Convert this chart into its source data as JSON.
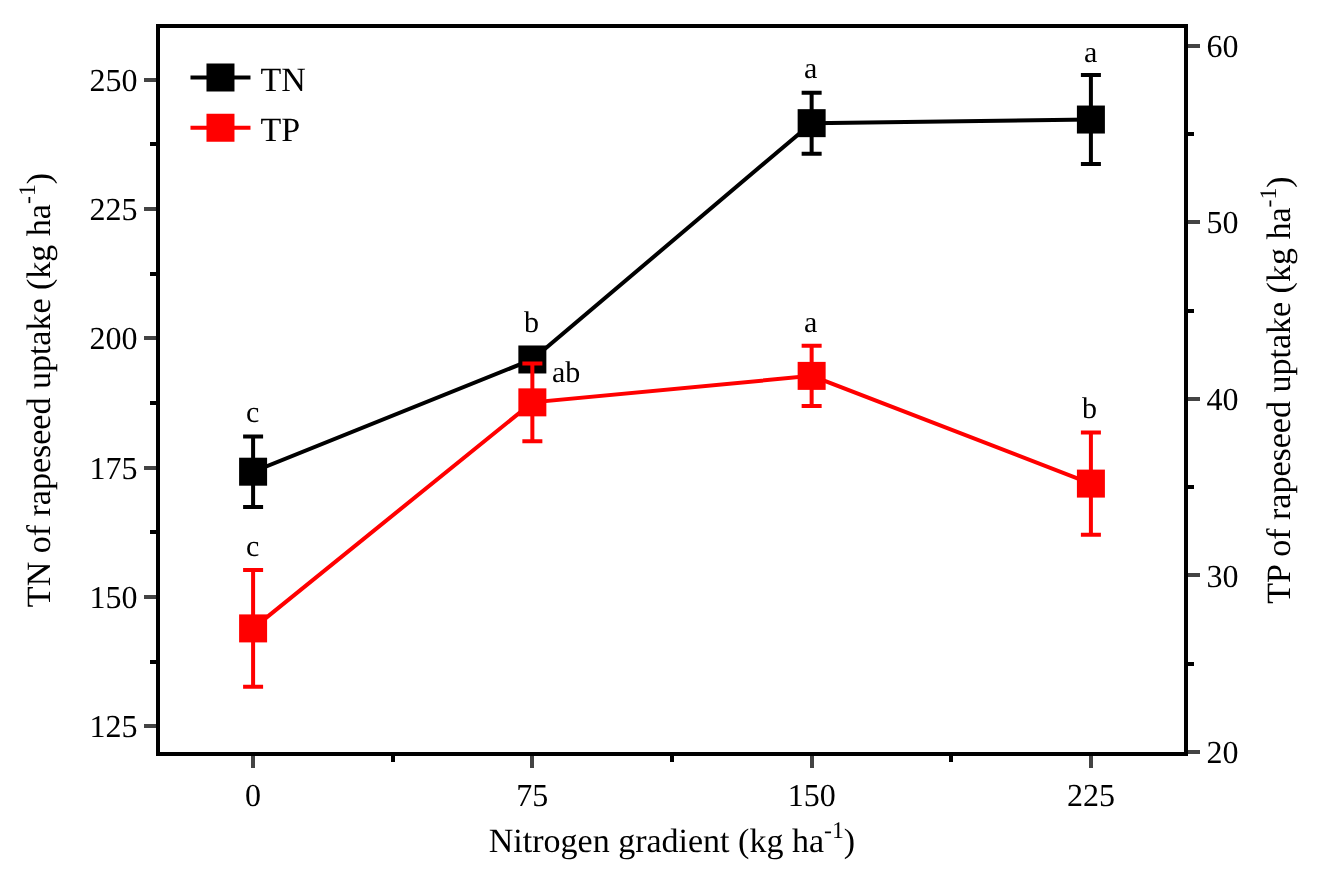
{
  "chart_data": {
    "type": "line",
    "xlabel": "Nitrogen gradient (kg ha$^{-1}$)",
    "ylabel": "TN of rapeseed uptake (kg ha$^{-1}$)",
    "y2label": "TP of rapeseed uptake (kg ha$^{-1}$)",
    "x": [
      0,
      75,
      150,
      225
    ],
    "series": [
      {
        "name": "TN",
        "color": "#000000",
        "values": [
          174.2,
          195.9,
          241.6,
          242.3
        ],
        "errors": [
          6.8,
          null,
          5.9,
          8.6
        ]
      },
      {
        "name": "TP",
        "color": "#ff0000",
        "axis": "y2",
        "values": [
          27.0,
          39.8,
          41.3,
          35.2
        ],
        "errors": [
          3.3,
          2.2,
          1.7,
          2.9
        ]
      }
    ],
    "xlim": [
      -25,
      250
    ],
    "xticks": [
      0,
      {
        "value": 37.5,
        "label": null
      },
      75,
      {
        "value": 112.5,
        "label": null
      },
      150,
      {
        "value": 187.5,
        "label": null
      },
      225
    ],
    "ylim": [
      120,
      260
    ],
    "yticks": [
      125,
      {
        "value": 137.5,
        "label": null
      },
      150,
      {
        "value": 162.5,
        "label": null
      },
      175,
      {
        "value": 187.5,
        "label": null
      },
      200,
      {
        "value": 212.5,
        "label": null
      },
      225,
      {
        "value": 237.5,
        "label": null
      },
      250
    ],
    "y2lim": [
      20,
      61
    ],
    "y2ticks": [
      20,
      {
        "value": 25,
        "label": null
      },
      30,
      {
        "value": 35,
        "label": null
      },
      40,
      {
        "value": 45,
        "label": null
      },
      50,
      {
        "value": 55,
        "label": null
      },
      60
    ],
    "annotations": [
      "c",
      "b",
      "a",
      "a",
      "c",
      "ab",
      "a",
      "b"
    ],
    "marker": "square",
    "line_style": "solid",
    "legend": "top left"
  }
}
